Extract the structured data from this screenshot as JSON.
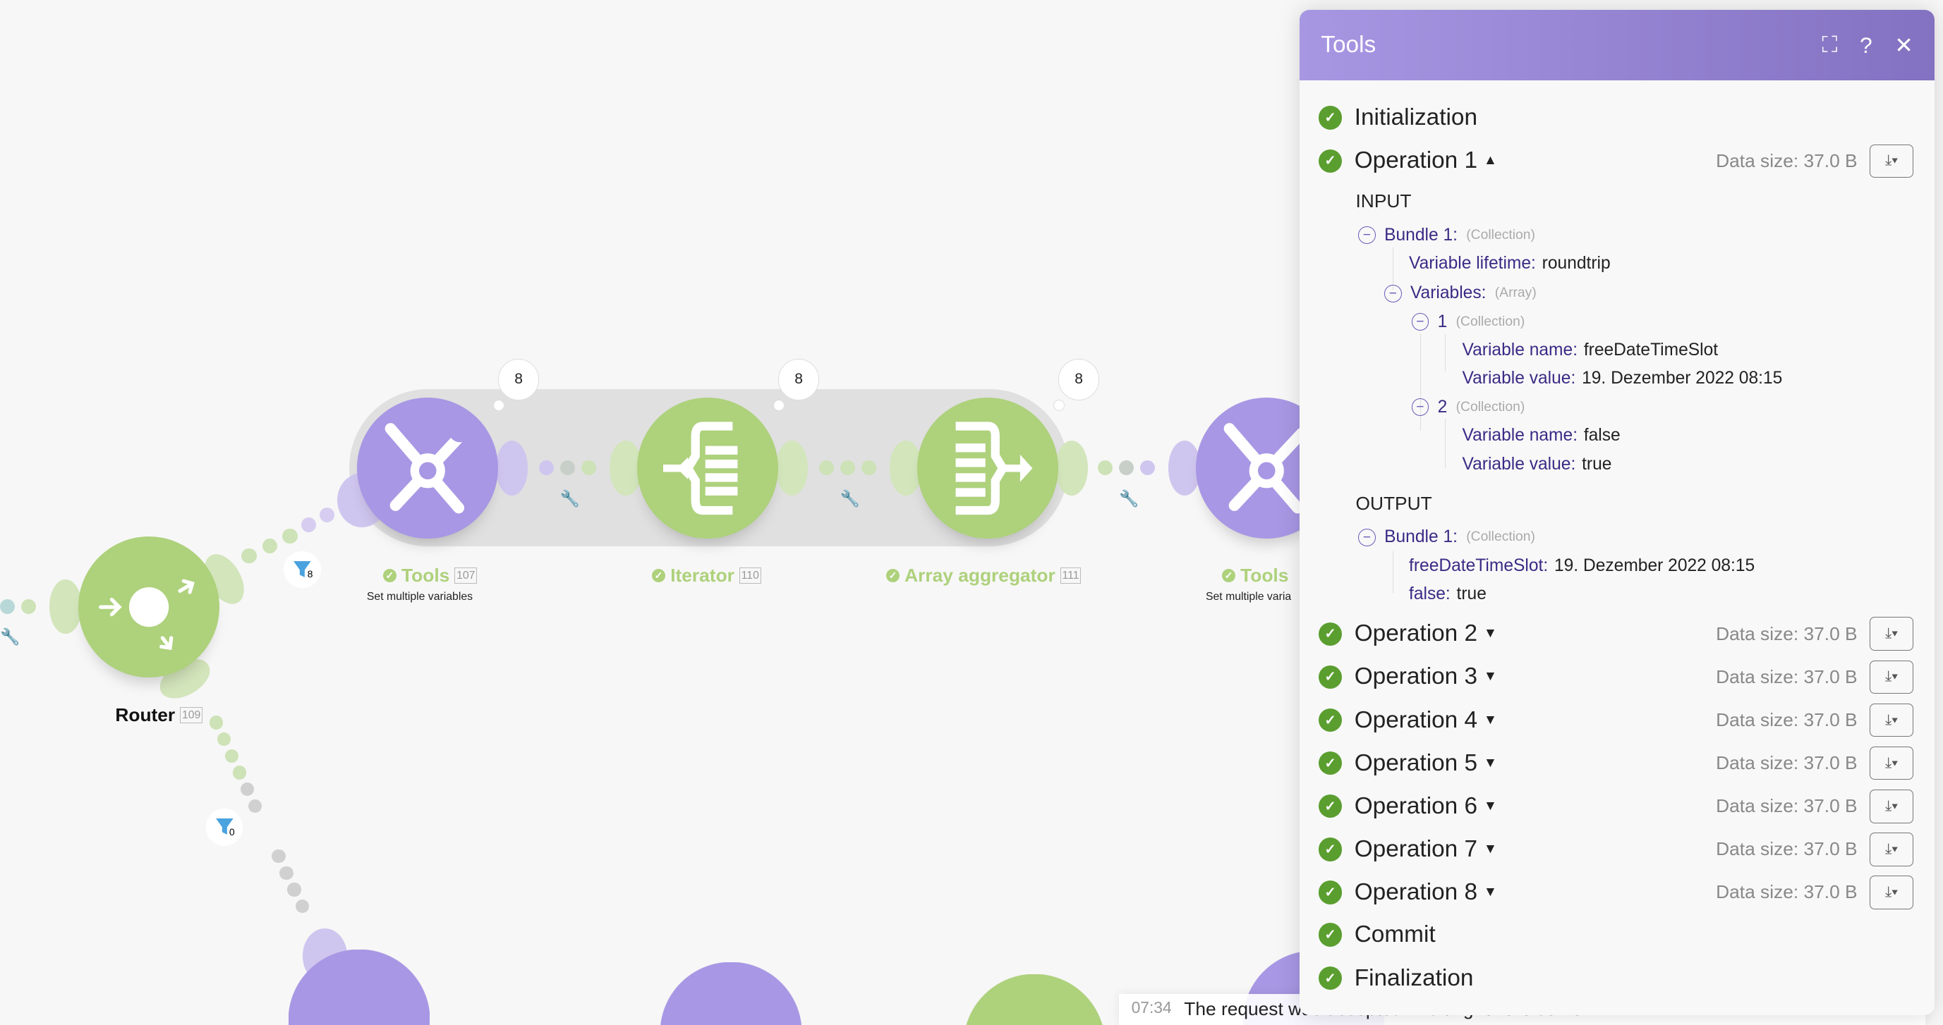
{
  "canvas": {
    "modules": [
      {
        "name": "Tools",
        "id": "107",
        "subtitle": "Set multiple variables",
        "bundles": "8"
      },
      {
        "name": "Iterator",
        "id": "110",
        "bundles": "8"
      },
      {
        "name": "Array aggregator",
        "id": "111",
        "bundles": "8"
      },
      {
        "name": "Tools",
        "subtitle": "Set multiple varia"
      }
    ],
    "router": {
      "name": "Router",
      "id": "109"
    },
    "filters": [
      {
        "count": "8"
      },
      {
        "count": "0"
      }
    ],
    "colors": {
      "tools": "#a897e4",
      "flow": "#aed17c"
    }
  },
  "panel": {
    "title": "Tools",
    "buttons": {
      "expand": "⛶",
      "help": "?",
      "close": "✕"
    },
    "initialization": "Initialization",
    "operation1": {
      "label": "Operation 1",
      "data_size": "Data size: 37.0 B",
      "input_label": "INPUT",
      "output_label": "OUTPUT",
      "input": {
        "bundle": "Bundle 1:",
        "bundle_type": "(Collection)",
        "lifetime_key": "Variable lifetime:",
        "lifetime_val": "roundtrip",
        "variables_key": "Variables:",
        "variables_type": "(Array)",
        "items": [
          {
            "index": "1",
            "type": "(Collection)",
            "name_key": "Variable name:",
            "name_val": "freeDateTimeSlot",
            "value_key": "Variable value:",
            "value_val": "19. Dezember 2022 08:15"
          },
          {
            "index": "2",
            "type": "(Collection)",
            "name_key": "Variable name:",
            "name_val": "false",
            "value_key": "Variable value:",
            "value_val": "true"
          }
        ]
      },
      "output": {
        "bundle": "Bundle 1:",
        "bundle_type": "(Collection)",
        "f1_key": "freeDateTimeSlot:",
        "f1_val": "19. Dezember 2022 08:15",
        "f2_key": "false:",
        "f2_val": "true"
      }
    },
    "operations": [
      {
        "label": "Operation 2",
        "data_size": "Data size: 37.0 B"
      },
      {
        "label": "Operation 3",
        "data_size": "Data size: 37.0 B"
      },
      {
        "label": "Operation 4",
        "data_size": "Data size: 37.0 B"
      },
      {
        "label": "Operation 5",
        "data_size": "Data size: 37.0 B"
      },
      {
        "label": "Operation 6",
        "data_size": "Data size: 37.0 B"
      },
      {
        "label": "Operation 7",
        "data_size": "Data size: 37.0 B"
      },
      {
        "label": "Operation 8",
        "data_size": "Data size: 37.0 B"
      }
    ],
    "commit": "Commit",
    "finalization": "Finalization",
    "status_color": "#5a9e2f"
  },
  "toast": {
    "time": "07:34",
    "message": "The request was accepted. Waiting for the server."
  }
}
